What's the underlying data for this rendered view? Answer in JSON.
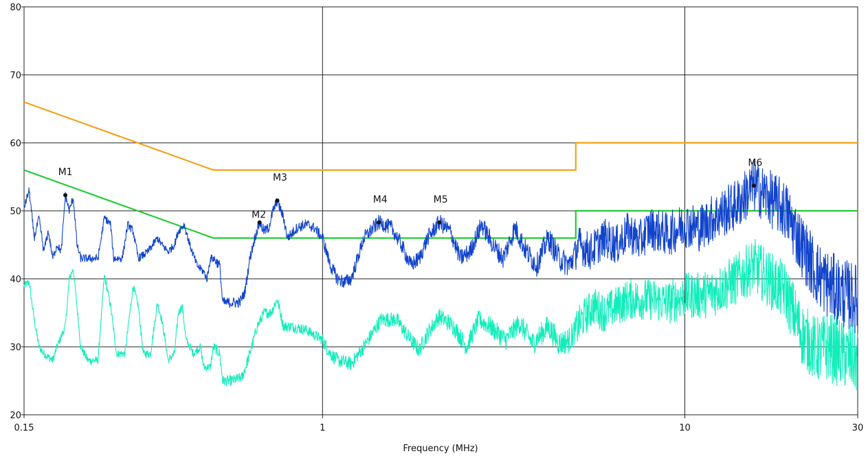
{
  "chart_data": {
    "type": "line",
    "title": "",
    "xlabel": "Frequency (MHz)",
    "ylabel": "",
    "x_scale": "log",
    "xlim": [
      0.15,
      30
    ],
    "ylim": [
      20,
      80
    ],
    "x_ticks": [
      {
        "value": 0.15,
        "label": "0.15"
      },
      {
        "value": 1,
        "label": "1"
      },
      {
        "value": 10,
        "label": "10"
      },
      {
        "value": 30,
        "label": "30"
      }
    ],
    "y_ticks": [
      {
        "value": 20,
        "label": "20"
      },
      {
        "value": 30,
        "label": "30"
      },
      {
        "value": 40,
        "label": "40"
      },
      {
        "value": 50,
        "label": "50"
      },
      {
        "value": 60,
        "label": "60"
      },
      {
        "value": 70,
        "label": "70"
      },
      {
        "value": 80,
        "label": "80"
      }
    ],
    "grid": true,
    "colors": {
      "limit_upper": "#f5a01a",
      "limit_lower": "#22cc33",
      "trace_peak": "#1144cc",
      "trace_avg": "#11eebb",
      "marker": "#111111",
      "grid": "#222222"
    },
    "limit_lines": [
      {
        "points": [
          [
            0.15,
            66
          ],
          [
            0.5,
            56
          ],
          [
            5,
            56
          ],
          [
            5,
            60
          ],
          [
            30,
            60
          ]
        ]
      },
      {
        "points": [
          [
            0.15,
            56
          ],
          [
            0.5,
            46
          ],
          [
            5,
            46
          ],
          [
            5,
            50
          ],
          [
            30,
            50
          ]
        ]
      }
    ],
    "series": [
      {
        "points": [
          [
            0.15,
            50.5
          ],
          [
            0.155,
            53
          ],
          [
            0.16,
            46
          ],
          [
            0.165,
            49
          ],
          [
            0.17,
            44
          ],
          [
            0.175,
            47
          ],
          [
            0.18,
            43
          ],
          [
            0.185,
            45
          ],
          [
            0.19,
            44
          ],
          [
            0.195,
            52.3
          ],
          [
            0.2,
            50
          ],
          [
            0.205,
            52
          ],
          [
            0.21,
            45
          ],
          [
            0.215,
            43
          ],
          [
            0.23,
            43
          ],
          [
            0.24,
            43
          ],
          [
            0.25,
            49
          ],
          [
            0.26,
            48
          ],
          [
            0.265,
            43
          ],
          [
            0.28,
            43
          ],
          [
            0.29,
            48
          ],
          [
            0.3,
            47
          ],
          [
            0.31,
            43
          ],
          [
            0.33,
            44
          ],
          [
            0.35,
            46
          ],
          [
            0.36,
            45
          ],
          [
            0.375,
            44
          ],
          [
            0.39,
            45
          ],
          [
            0.4,
            47
          ],
          [
            0.415,
            48
          ],
          [
            0.43,
            45
          ],
          [
            0.45,
            42
          ],
          [
            0.47,
            41
          ],
          [
            0.48,
            40
          ],
          [
            0.49,
            43
          ],
          [
            0.5,
            43
          ],
          [
            0.52,
            42
          ],
          [
            0.53,
            36.5
          ],
          [
            0.56,
            36.5
          ],
          [
            0.59,
            36.5
          ],
          [
            0.61,
            38
          ],
          [
            0.63,
            43
          ],
          [
            0.65,
            46
          ],
          [
            0.67,
            48.3
          ],
          [
            0.69,
            47
          ],
          [
            0.71,
            47.5
          ],
          [
            0.73,
            50
          ],
          [
            0.75,
            51.5
          ],
          [
            0.78,
            49
          ],
          [
            0.8,
            46
          ],
          [
            0.85,
            47.5
          ],
          [
            0.9,
            48
          ],
          [
            0.95,
            47.5
          ],
          [
            1.0,
            46
          ],
          [
            1.05,
            42
          ],
          [
            1.1,
            40
          ],
          [
            1.15,
            39.5
          ],
          [
            1.2,
            40
          ],
          [
            1.25,
            43
          ],
          [
            1.3,
            46
          ],
          [
            1.43,
            48.3
          ],
          [
            1.55,
            47.5
          ],
          [
            1.65,
            45
          ],
          [
            1.75,
            42
          ],
          [
            1.85,
            43
          ],
          [
            1.95,
            46
          ],
          [
            2.1,
            48.3
          ],
          [
            2.25,
            47
          ],
          [
            2.4,
            43
          ],
          [
            2.55,
            44
          ],
          [
            2.75,
            48
          ],
          [
            2.95,
            45
          ],
          [
            3.15,
            43
          ],
          [
            3.4,
            47.5
          ],
          [
            3.65,
            44
          ],
          [
            3.9,
            42
          ],
          [
            4.2,
            46
          ],
          [
            4.5,
            43
          ],
          [
            4.8,
            42
          ],
          [
            5.1,
            45
          ],
          [
            5.5,
            44
          ],
          [
            6,
            46
          ],
          [
            6.5,
            45
          ],
          [
            7,
            47
          ],
          [
            7.5,
            45.5
          ],
          [
            8,
            47.5
          ],
          [
            9,
            46.5
          ],
          [
            10,
            48
          ],
          [
            11,
            47.5
          ],
          [
            12,
            49
          ],
          [
            13,
            50
          ],
          [
            14,
            51
          ],
          [
            15.5,
            53.7
          ],
          [
            17,
            52
          ],
          [
            19,
            50
          ],
          [
            21,
            45
          ],
          [
            23,
            41
          ],
          [
            25,
            39
          ],
          [
            27,
            38
          ],
          [
            30,
            37
          ]
        ]
      },
      {
        "points": [
          [
            0.15,
            39
          ],
          [
            0.155,
            39.5
          ],
          [
            0.16,
            34
          ],
          [
            0.165,
            30
          ],
          [
            0.17,
            29
          ],
          [
            0.18,
            28
          ],
          [
            0.185,
            30
          ],
          [
            0.195,
            33
          ],
          [
            0.2,
            40
          ],
          [
            0.205,
            41.5
          ],
          [
            0.21,
            36
          ],
          [
            0.215,
            30
          ],
          [
            0.225,
            28
          ],
          [
            0.24,
            28
          ],
          [
            0.25,
            40.5
          ],
          [
            0.26,
            36
          ],
          [
            0.27,
            29
          ],
          [
            0.285,
            29
          ],
          [
            0.3,
            39
          ],
          [
            0.31,
            36
          ],
          [
            0.32,
            29
          ],
          [
            0.335,
            29
          ],
          [
            0.35,
            36.5
          ],
          [
            0.36,
            34
          ],
          [
            0.375,
            28
          ],
          [
            0.39,
            29
          ],
          [
            0.4,
            35
          ],
          [
            0.41,
            36
          ],
          [
            0.42,
            31
          ],
          [
            0.44,
            29
          ],
          [
            0.46,
            30
          ],
          [
            0.47,
            27
          ],
          [
            0.49,
            27
          ],
          [
            0.5,
            30
          ],
          [
            0.52,
            29
          ],
          [
            0.53,
            25
          ],
          [
            0.56,
            25
          ],
          [
            0.6,
            25.5
          ],
          [
            0.63,
            29
          ],
          [
            0.66,
            33
          ],
          [
            0.69,
            35
          ],
          [
            0.72,
            35
          ],
          [
            0.75,
            37
          ],
          [
            0.78,
            33
          ],
          [
            0.82,
            33
          ],
          [
            0.9,
            32.5
          ],
          [
            1.0,
            31
          ],
          [
            1.05,
            29
          ],
          [
            1.1,
            28
          ],
          [
            1.2,
            27.5
          ],
          [
            1.3,
            30
          ],
          [
            1.45,
            34
          ],
          [
            1.6,
            34
          ],
          [
            1.75,
            31
          ],
          [
            1.85,
            29.5
          ],
          [
            1.95,
            32
          ],
          [
            2.1,
            34.5
          ],
          [
            2.3,
            33
          ],
          [
            2.5,
            30
          ],
          [
            2.7,
            34
          ],
          [
            2.9,
            33
          ],
          [
            3.2,
            31
          ],
          [
            3.5,
            33.5
          ],
          [
            3.8,
            30.5
          ],
          [
            4.2,
            33
          ],
          [
            4.5,
            30.5
          ],
          [
            4.8,
            31
          ],
          [
            5.2,
            34
          ],
          [
            5.6,
            36
          ],
          [
            6,
            35
          ],
          [
            7,
            37
          ],
          [
            8,
            37
          ],
          [
            9,
            36.5
          ],
          [
            10,
            37.5
          ],
          [
            11,
            37.5
          ],
          [
            12,
            38
          ],
          [
            14,
            40
          ],
          [
            15.5,
            42
          ],
          [
            17,
            40
          ],
          [
            19,
            38
          ],
          [
            21,
            32
          ],
          [
            23,
            29.5
          ],
          [
            25,
            30
          ],
          [
            27,
            29
          ],
          [
            30,
            28
          ]
        ]
      }
    ],
    "markers": [
      {
        "label": "M1",
        "x": 0.195,
        "y": 52.3
      },
      {
        "label": "M2",
        "x": 0.67,
        "y": 48.3
      },
      {
        "label": "M3",
        "x": 0.75,
        "y": 51.5
      },
      {
        "label": "M4",
        "x": 1.43,
        "y": 48.3
      },
      {
        "label": "M5",
        "x": 2.1,
        "y": 48.3
      },
      {
        "label": "M6",
        "x": 15.5,
        "y": 53.7
      }
    ]
  }
}
